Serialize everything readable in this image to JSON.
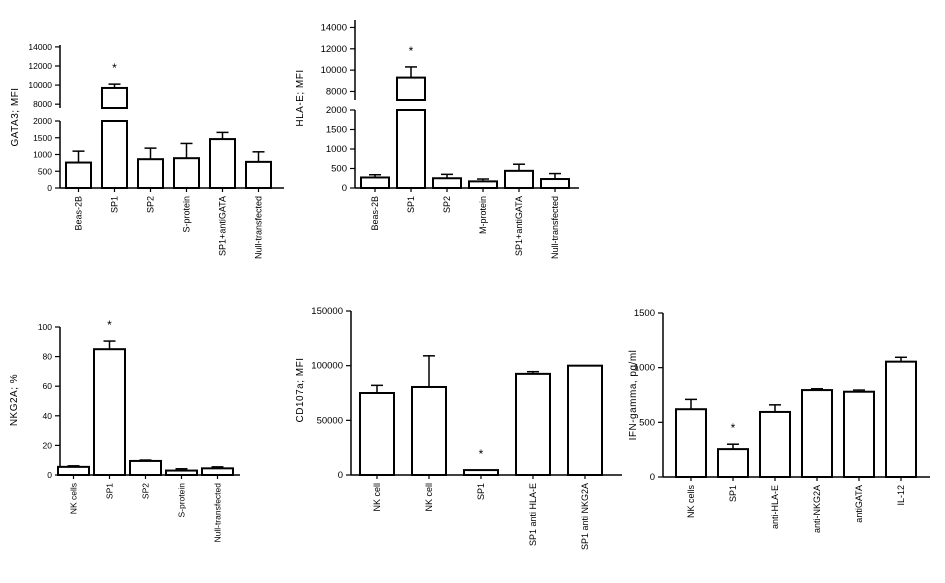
{
  "chart_data": [
    {
      "type": "bar",
      "ylabel": "GATA3; MFI",
      "categories": [
        "Beas-2B",
        "SP1",
        "SP2",
        "S-protein",
        "SP1+antiGATA",
        "Null-transfected"
      ],
      "values": [
        760,
        9700,
        860,
        890,
        1460,
        780
      ],
      "errors": [
        340,
        400,
        330,
        440,
        200,
        300
      ],
      "significance": [
        "",
        "*",
        "",
        "",
        "",
        ""
      ],
      "axis_break": true,
      "yticks_lower": [
        "0",
        "500",
        "1000",
        "1500",
        "2000"
      ],
      "yticks_upper": [
        "8000",
        "10000",
        "12000",
        "14000"
      ]
    },
    {
      "type": "bar",
      "ylabel": "HLA-E; MFI",
      "categories": [
        "Beas-2B",
        "SP1",
        "SP2",
        "M-protein",
        "SP1+antiGATA",
        "Null-transfected"
      ],
      "values": [
        270,
        9300,
        250,
        170,
        440,
        230
      ],
      "errors": [
        70,
        1000,
        100,
        60,
        170,
        140
      ],
      "significance": [
        "",
        "*",
        "",
        "",
        "",
        ""
      ],
      "axis_break": true,
      "yticks_lower": [
        "0",
        "500",
        "1000",
        "1500",
        "2000"
      ],
      "yticks_upper": [
        "8000",
        "10000",
        "12000",
        "14000"
      ]
    },
    {
      "type": "bar",
      "ylabel": "NKG2A; %",
      "categories": [
        "NK cells",
        "SP1",
        "SP2",
        "S-protein",
        "Null-transfected"
      ],
      "values": [
        5.5,
        85,
        9.5,
        3,
        4.5
      ],
      "errors": [
        0.7,
        5.5,
        0.6,
        1.2,
        1
      ],
      "significance": [
        "",
        "*",
        "",
        "",
        ""
      ],
      "ylim": [
        0,
        100
      ],
      "yticks": [
        "0",
        "20",
        "40",
        "60",
        "80",
        "100"
      ]
    },
    {
      "type": "bar",
      "ylabel": "CD107a; MFI",
      "categories": [
        "NK cell",
        "NK cell",
        "SP1",
        "SP1 anti HLA-E",
        "SP1 anti NKG2A"
      ],
      "values": [
        75000,
        80500,
        4500,
        92500,
        100000
      ],
      "errors": [
        7000,
        28500,
        0,
        2000,
        0
      ],
      "significance": [
        "",
        "",
        "*",
        "",
        ""
      ],
      "ylim": [
        0,
        150000
      ],
      "yticks": [
        "0",
        "50000",
        "100000",
        "150000"
      ]
    },
    {
      "type": "bar",
      "ylabel": "IFN-gamma, pg/ml",
      "categories": [
        "NK cells",
        "SP1",
        "anti-HLA-E",
        "anti-NKG2A",
        "antiGATA",
        "IL-12"
      ],
      "values": [
        620,
        255,
        595,
        795,
        780,
        1055
      ],
      "errors": [
        90,
        45,
        65,
        12,
        15,
        40
      ],
      "significance": [
        "",
        "*",
        "",
        "",
        "",
        ""
      ],
      "ylim": [
        0,
        1500
      ],
      "yticks": [
        "0",
        "500",
        "1000",
        "1500"
      ]
    }
  ]
}
